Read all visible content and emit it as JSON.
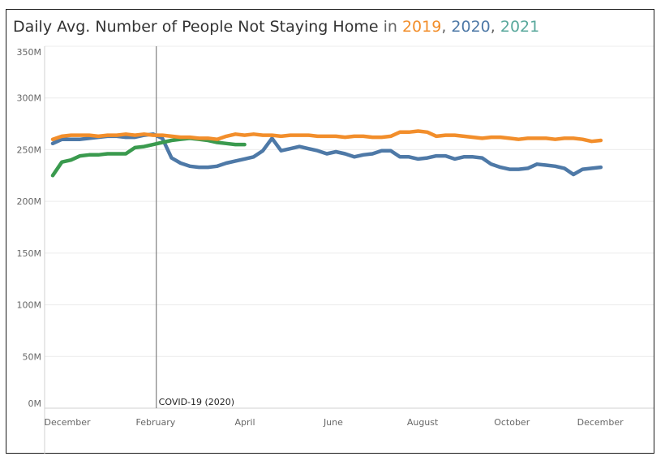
{
  "title": {
    "main": "Daily Avg. Number of People Not Staying Home",
    "in": "in",
    "year1": "2019",
    "sep1": ",",
    "year2": "2020",
    "sep2": ",",
    "year3": "2021"
  },
  "chart_data": {
    "type": "line",
    "ylim": [
      0,
      350
    ],
    "yunit": "M",
    "yticks": [
      {
        "value": 0,
        "label": "0M"
      },
      {
        "value": 50,
        "label": "50M"
      },
      {
        "value": 100,
        "label": "100M"
      },
      {
        "value": 150,
        "label": "150M"
      },
      {
        "value": 200,
        "label": "200M"
      },
      {
        "value": 250,
        "label": "250M"
      },
      {
        "value": 300,
        "label": "300M"
      },
      {
        "value": 350,
        "label": "350M"
      }
    ],
    "xlim": [
      0,
      60
    ],
    "xticks": [
      {
        "value": 0,
        "label": "December"
      },
      {
        "value": 8.7,
        "label": "February"
      },
      {
        "value": 17.5,
        "label": "April"
      },
      {
        "value": 26.2,
        "label": "June"
      },
      {
        "value": 35,
        "label": "August"
      },
      {
        "value": 43.8,
        "label": "October"
      },
      {
        "value": 52.5,
        "label": "December"
      }
    ],
    "annotation": {
      "x": 11,
      "label": "COVID-19 (2020)"
    },
    "series": [
      {
        "name": "2019",
        "color": "#f28e2b",
        "x": [
          0.8,
          1.7,
          2.6,
          3.5,
          4.4,
          5.3,
          6.2,
          7.1,
          8.0,
          8.9,
          9.8,
          10.7,
          11.6,
          12.5,
          13.4,
          14.3,
          15.2,
          16.1,
          17.0,
          17.9,
          18.8,
          19.7,
          20.6,
          21.5,
          22.4,
          23.3,
          24.2,
          25.1,
          26.0,
          26.9,
          27.8,
          28.7,
          29.6,
          30.5,
          31.4,
          32.3,
          33.2,
          34.1,
          35.0,
          35.9,
          36.8,
          37.7,
          38.6,
          39.5,
          40.4,
          41.3,
          42.2,
          43.1,
          44.0,
          44.9,
          45.8,
          46.7,
          47.6,
          48.5,
          49.4,
          50.3,
          51.2,
          52.1,
          53.0,
          53.9,
          54.8
        ],
        "y": [
          260,
          263,
          264,
          264,
          264,
          263,
          264,
          264,
          265,
          264,
          265,
          264,
          264,
          263,
          262,
          262,
          261,
          261,
          260,
          263,
          265,
          264,
          265,
          264,
          264,
          263,
          264,
          264,
          264,
          263,
          263,
          263,
          262,
          263,
          263,
          262,
          262,
          263,
          267,
          267,
          268,
          267,
          263,
          264,
          264,
          263,
          262,
          261,
          262,
          262,
          261,
          260,
          261,
          261,
          261,
          260,
          261,
          261,
          260,
          258,
          259
        ]
      },
      {
        "name": "2020",
        "color": "#4e79a7",
        "x": [
          0.8,
          1.7,
          2.6,
          3.5,
          4.4,
          5.3,
          6.2,
          7.1,
          8.0,
          8.9,
          9.8,
          10.7,
          11.6,
          12.5,
          13.4,
          14.3,
          15.2,
          16.1,
          17.0,
          17.9,
          18.8,
          19.7,
          20.6,
          21.5,
          22.4,
          23.3,
          24.2,
          25.1,
          26.0,
          26.9,
          27.8,
          28.7,
          29.6,
          30.5,
          31.4,
          32.3,
          33.2,
          34.1,
          35.0,
          35.9,
          36.8,
          37.7,
          38.6,
          39.5,
          40.4,
          41.3,
          42.2,
          43.1,
          44.0,
          44.9,
          45.8,
          46.7,
          47.6,
          48.5,
          49.4,
          50.3,
          51.2,
          52.1,
          53.0,
          53.9,
          54.8
        ],
        "y": [
          256,
          260,
          260,
          260,
          261,
          262,
          263,
          263,
          262,
          262,
          264,
          265,
          261,
          242,
          237,
          234,
          233,
          233,
          234,
          237,
          239,
          241,
          243,
          249,
          261,
          249,
          251,
          253,
          251,
          249,
          246,
          248,
          246,
          243,
          245,
          246,
          249,
          249,
          243,
          243,
          241,
          242,
          244,
          244,
          241,
          243,
          243,
          242,
          236,
          233,
          231,
          231,
          232,
          236,
          235,
          234,
          232,
          226,
          231,
          232,
          233
        ]
      },
      {
        "name": "2021",
        "color": "#3a9a4e",
        "x": [
          0.8,
          1.7,
          2.6,
          3.5,
          4.4,
          5.3,
          6.2,
          7.1,
          8.0,
          8.9,
          9.8,
          10.7,
          11.6,
          12.5,
          13.4,
          14.3,
          15.2,
          16.1,
          17.0,
          17.9,
          18.8,
          19.7
        ],
        "y": [
          225,
          238,
          240,
          244,
          245,
          245,
          246,
          246,
          246,
          252,
          253,
          255,
          257,
          259,
          260,
          261,
          260,
          259,
          257,
          256,
          255,
          255
        ]
      }
    ]
  }
}
